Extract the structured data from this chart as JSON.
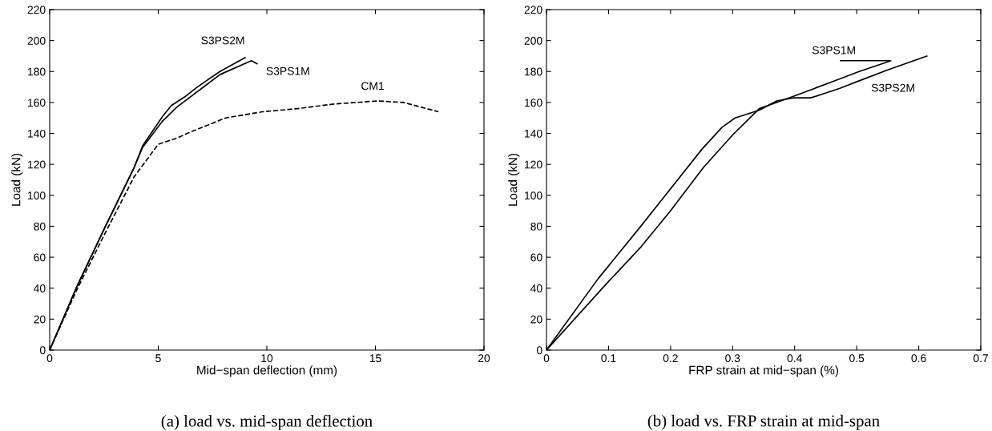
{
  "chart_data": [
    {
      "type": "line",
      "xlabel": "Mid−span deflection (mm)",
      "ylabel": "Load (kN)",
      "annotations": [
        "(a) load vs. mid-span deflection"
      ],
      "xlim": [
        0,
        20
      ],
      "ylim": [
        0,
        220
      ],
      "xticks": [
        0,
        5,
        10,
        15,
        20
      ],
      "yticks": [
        0,
        20,
        40,
        60,
        80,
        100,
        120,
        140,
        160,
        180,
        200,
        220
      ],
      "grid": false,
      "legend": false,
      "series": [
        {
          "name": "S3PS2M",
          "color": "#000000",
          "line_style": "solid",
          "x": [
            0,
            1.25,
            2.57,
            3.89,
            4.28,
            5.2,
            5.6,
            6.26,
            6.8,
            7.84,
            9.0
          ],
          "values": [
            0,
            41,
            80,
            118,
            132,
            151,
            158,
            164,
            170,
            180,
            189
          ]
        },
        {
          "name": "S3PS1M",
          "color": "#000000",
          "line_style": "solid",
          "x": [
            0,
            1.25,
            2.57,
            3.89,
            4.28,
            5.2,
            5.86,
            7.84,
            9.29,
            9.55
          ],
          "values": [
            0,
            41,
            80,
            118,
            131,
            148,
            157,
            178,
            187,
            185
          ]
        },
        {
          "name": "CM1",
          "color": "#000000",
          "line_style": "dashed",
          "x": [
            0,
            1.25,
            2.57,
            3.89,
            5.0,
            5.86,
            6.5,
            8.1,
            9.8,
            11.4,
            13.1,
            15.1,
            16.3,
            17.9
          ],
          "values": [
            0,
            39,
            76,
            112,
            133,
            137,
            141,
            150,
            154,
            156,
            159,
            161,
            160,
            154
          ]
        }
      ]
    },
    {
      "type": "line",
      "xlabel": "FRP strain at mid−span (%)",
      "ylabel": "Load (kN)",
      "annotations": [
        "(b) load vs. FRP strain at mid-span"
      ],
      "xlim": [
        0,
        0.7
      ],
      "ylim": [
        0,
        220
      ],
      "xticks": [
        0,
        0.1,
        0.2,
        0.3,
        0.4,
        0.5,
        0.6,
        0.7
      ],
      "yticks": [
        0,
        20,
        40,
        60,
        80,
        100,
        120,
        140,
        160,
        180,
        200,
        220
      ],
      "grid": false,
      "legend": false,
      "series": [
        {
          "name": "S3PS1M",
          "color": "#000000",
          "line_style": "solid",
          "x": [
            0,
            0.097,
            0.153,
            0.198,
            0.253,
            0.3,
            0.343,
            0.398,
            0.458,
            0.504,
            0.548,
            0.555,
            0.474
          ],
          "values": [
            0,
            43,
            67,
            89,
            118,
            139,
            156,
            164,
            173,
            180,
            186,
            187,
            187
          ]
        },
        {
          "name": "S3PS2M",
          "color": "#000000",
          "line_style": "solid",
          "x": [
            0,
            0.083,
            0.15,
            0.251,
            0.283,
            0.304,
            0.343,
            0.371,
            0.398,
            0.426,
            0.472,
            0.504,
            0.55,
            0.613
          ],
          "values": [
            0,
            46,
            79,
            130,
            144,
            150,
            155,
            161,
            163,
            163,
            169,
            174,
            181,
            190
          ]
        }
      ]
    }
  ]
}
